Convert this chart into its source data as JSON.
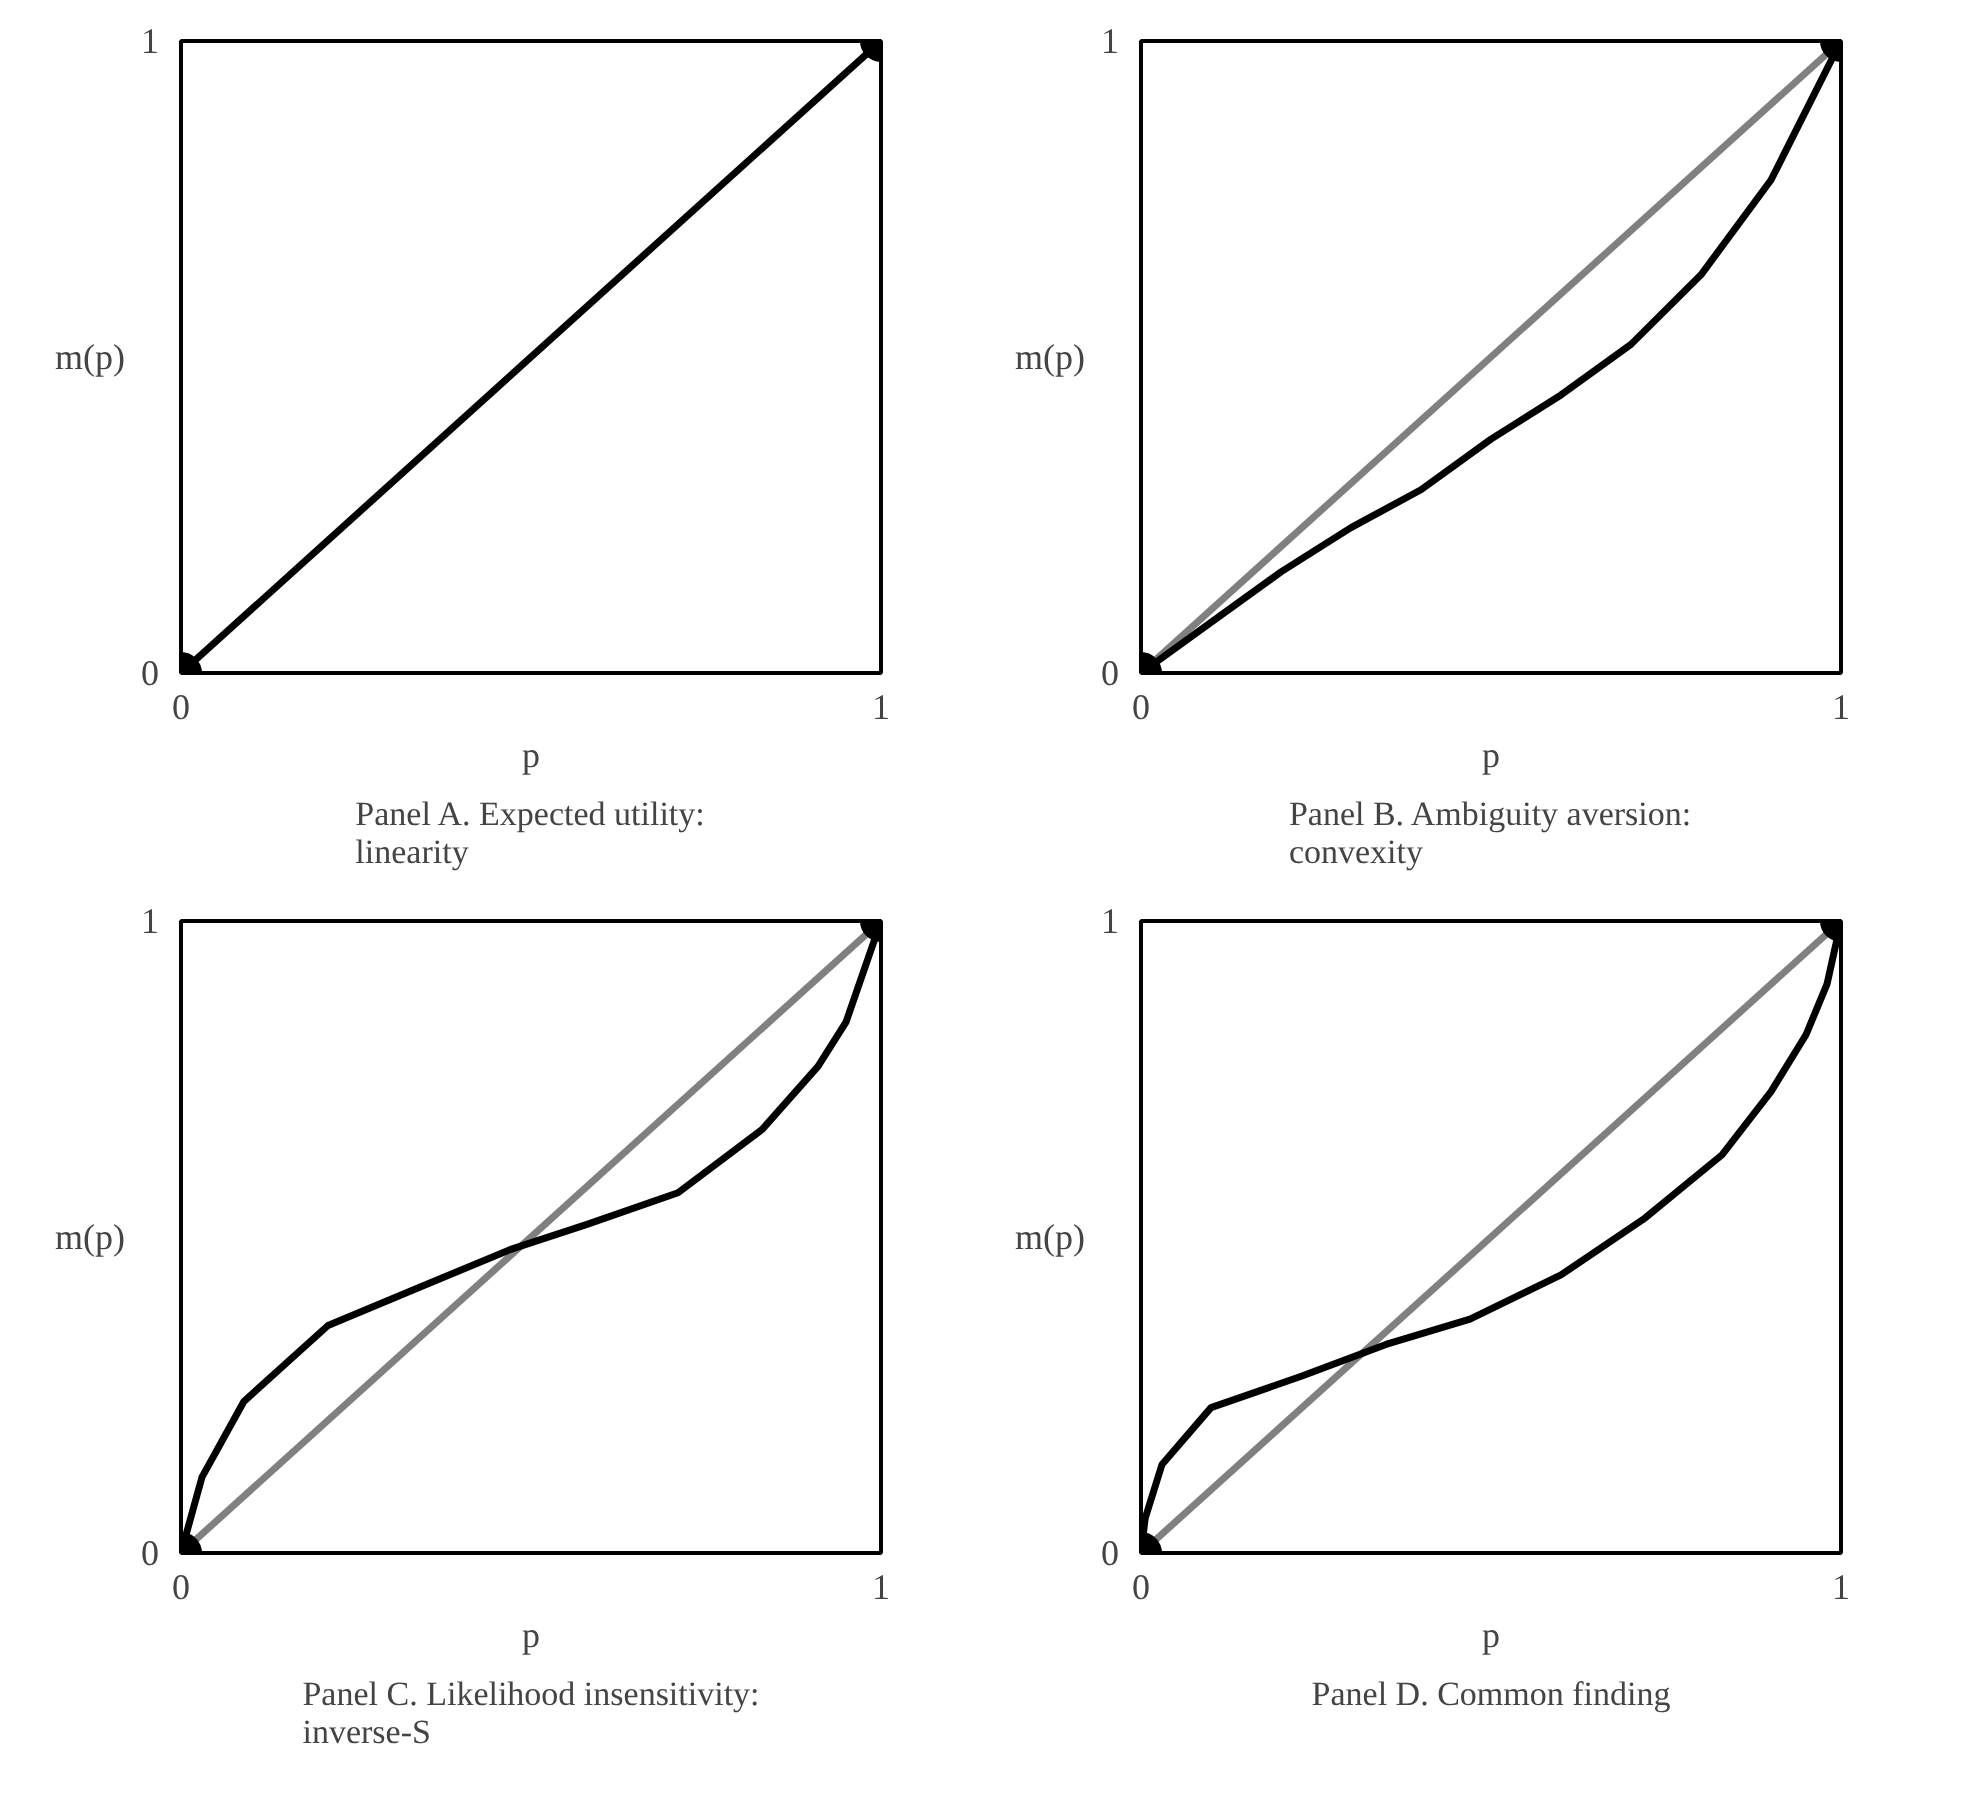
{
  "chart_data": [
    {
      "type": "line",
      "title": "Panel A. Expected utility: linearity",
      "xlabel": "p",
      "ylabel": "m(p)",
      "xlim": [
        0,
        1
      ],
      "ylim": [
        0,
        1
      ],
      "xticks": [
        0,
        1
      ],
      "yticks": [
        0,
        1
      ],
      "line_style": "solid",
      "series": [
        {
          "color": "#000000",
          "x": [
            0,
            1
          ],
          "values": [
            0,
            1
          ]
        },
        {
          "type": "scatter",
          "marker": "circle",
          "color": "#000000",
          "x": [
            0,
            1
          ],
          "values": [
            0,
            1
          ]
        }
      ]
    },
    {
      "type": "line",
      "title": "Panel B. Ambiguity aversion: convexity",
      "xlabel": "p",
      "ylabel": "m(p)",
      "xlim": [
        0,
        1
      ],
      "ylim": [
        0,
        1
      ],
      "xticks": [
        0,
        1
      ],
      "yticks": [
        0,
        1
      ],
      "line_style": "solid",
      "series": [
        {
          "color": "#808080",
          "x": [
            0,
            1
          ],
          "values": [
            0,
            1
          ]
        },
        {
          "color": "#000000",
          "x": [
            0,
            0.1,
            0.2,
            0.3,
            0.4,
            0.5,
            0.6,
            0.7,
            0.8,
            0.9,
            1
          ],
          "values": [
            0,
            0.08,
            0.16,
            0.23,
            0.29,
            0.37,
            0.44,
            0.52,
            0.63,
            0.78,
            1
          ]
        },
        {
          "type": "scatter",
          "marker": "circle",
          "color": "#000000",
          "x": [
            0,
            1
          ],
          "values": [
            0,
            1
          ]
        }
      ]
    },
    {
      "type": "line",
      "title": "Panel C. Likelihood insensitivity: inverse-S",
      "xlabel": "p",
      "ylabel": "m(p)",
      "xlim": [
        0,
        1
      ],
      "ylim": [
        0,
        1
      ],
      "xticks": [
        0,
        1
      ],
      "yticks": [
        0,
        1
      ],
      "line_style": "solid",
      "series": [
        {
          "color": "#808080",
          "x": [
            0,
            1
          ],
          "values": [
            0,
            1
          ]
        },
        {
          "color": "#000000",
          "x": [
            0,
            0.03,
            0.09,
            0.21,
            0.34,
            0.47,
            0.58,
            0.71,
            0.83,
            0.91,
            0.95,
            1
          ],
          "values": [
            0,
            0.12,
            0.24,
            0.36,
            0.42,
            0.48,
            0.52,
            0.57,
            0.67,
            0.77,
            0.84,
            1
          ]
        },
        {
          "type": "scatter",
          "marker": "circle",
          "color": "#000000",
          "x": [
            0,
            1
          ],
          "values": [
            0,
            1
          ]
        }
      ]
    },
    {
      "type": "line",
      "title": "Panel D. Common finding",
      "xlabel": "p",
      "ylabel": "m(p)",
      "xlim": [
        0,
        1
      ],
      "ylim": [
        0,
        1
      ],
      "xticks": [
        0,
        1
      ],
      "yticks": [
        0,
        1
      ],
      "line_style": "solid",
      "series": [
        {
          "color": "#808080",
          "x": [
            0,
            1
          ],
          "values": [
            0,
            1
          ]
        },
        {
          "color": "#000000",
          "x": [
            0,
            0.006,
            0.03,
            0.1,
            0.23,
            0.35,
            0.47,
            0.6,
            0.72,
            0.83,
            0.9,
            0.95,
            0.98,
            1
          ],
          "values": [
            0,
            0.055,
            0.14,
            0.23,
            0.28,
            0.33,
            0.37,
            0.44,
            0.53,
            0.63,
            0.73,
            0.82,
            0.9,
            1
          ]
        },
        {
          "type": "scatter",
          "marker": "circle",
          "color": "#000000",
          "x": [
            0,
            1
          ],
          "values": [
            0,
            1
          ]
        }
      ]
    }
  ]
}
